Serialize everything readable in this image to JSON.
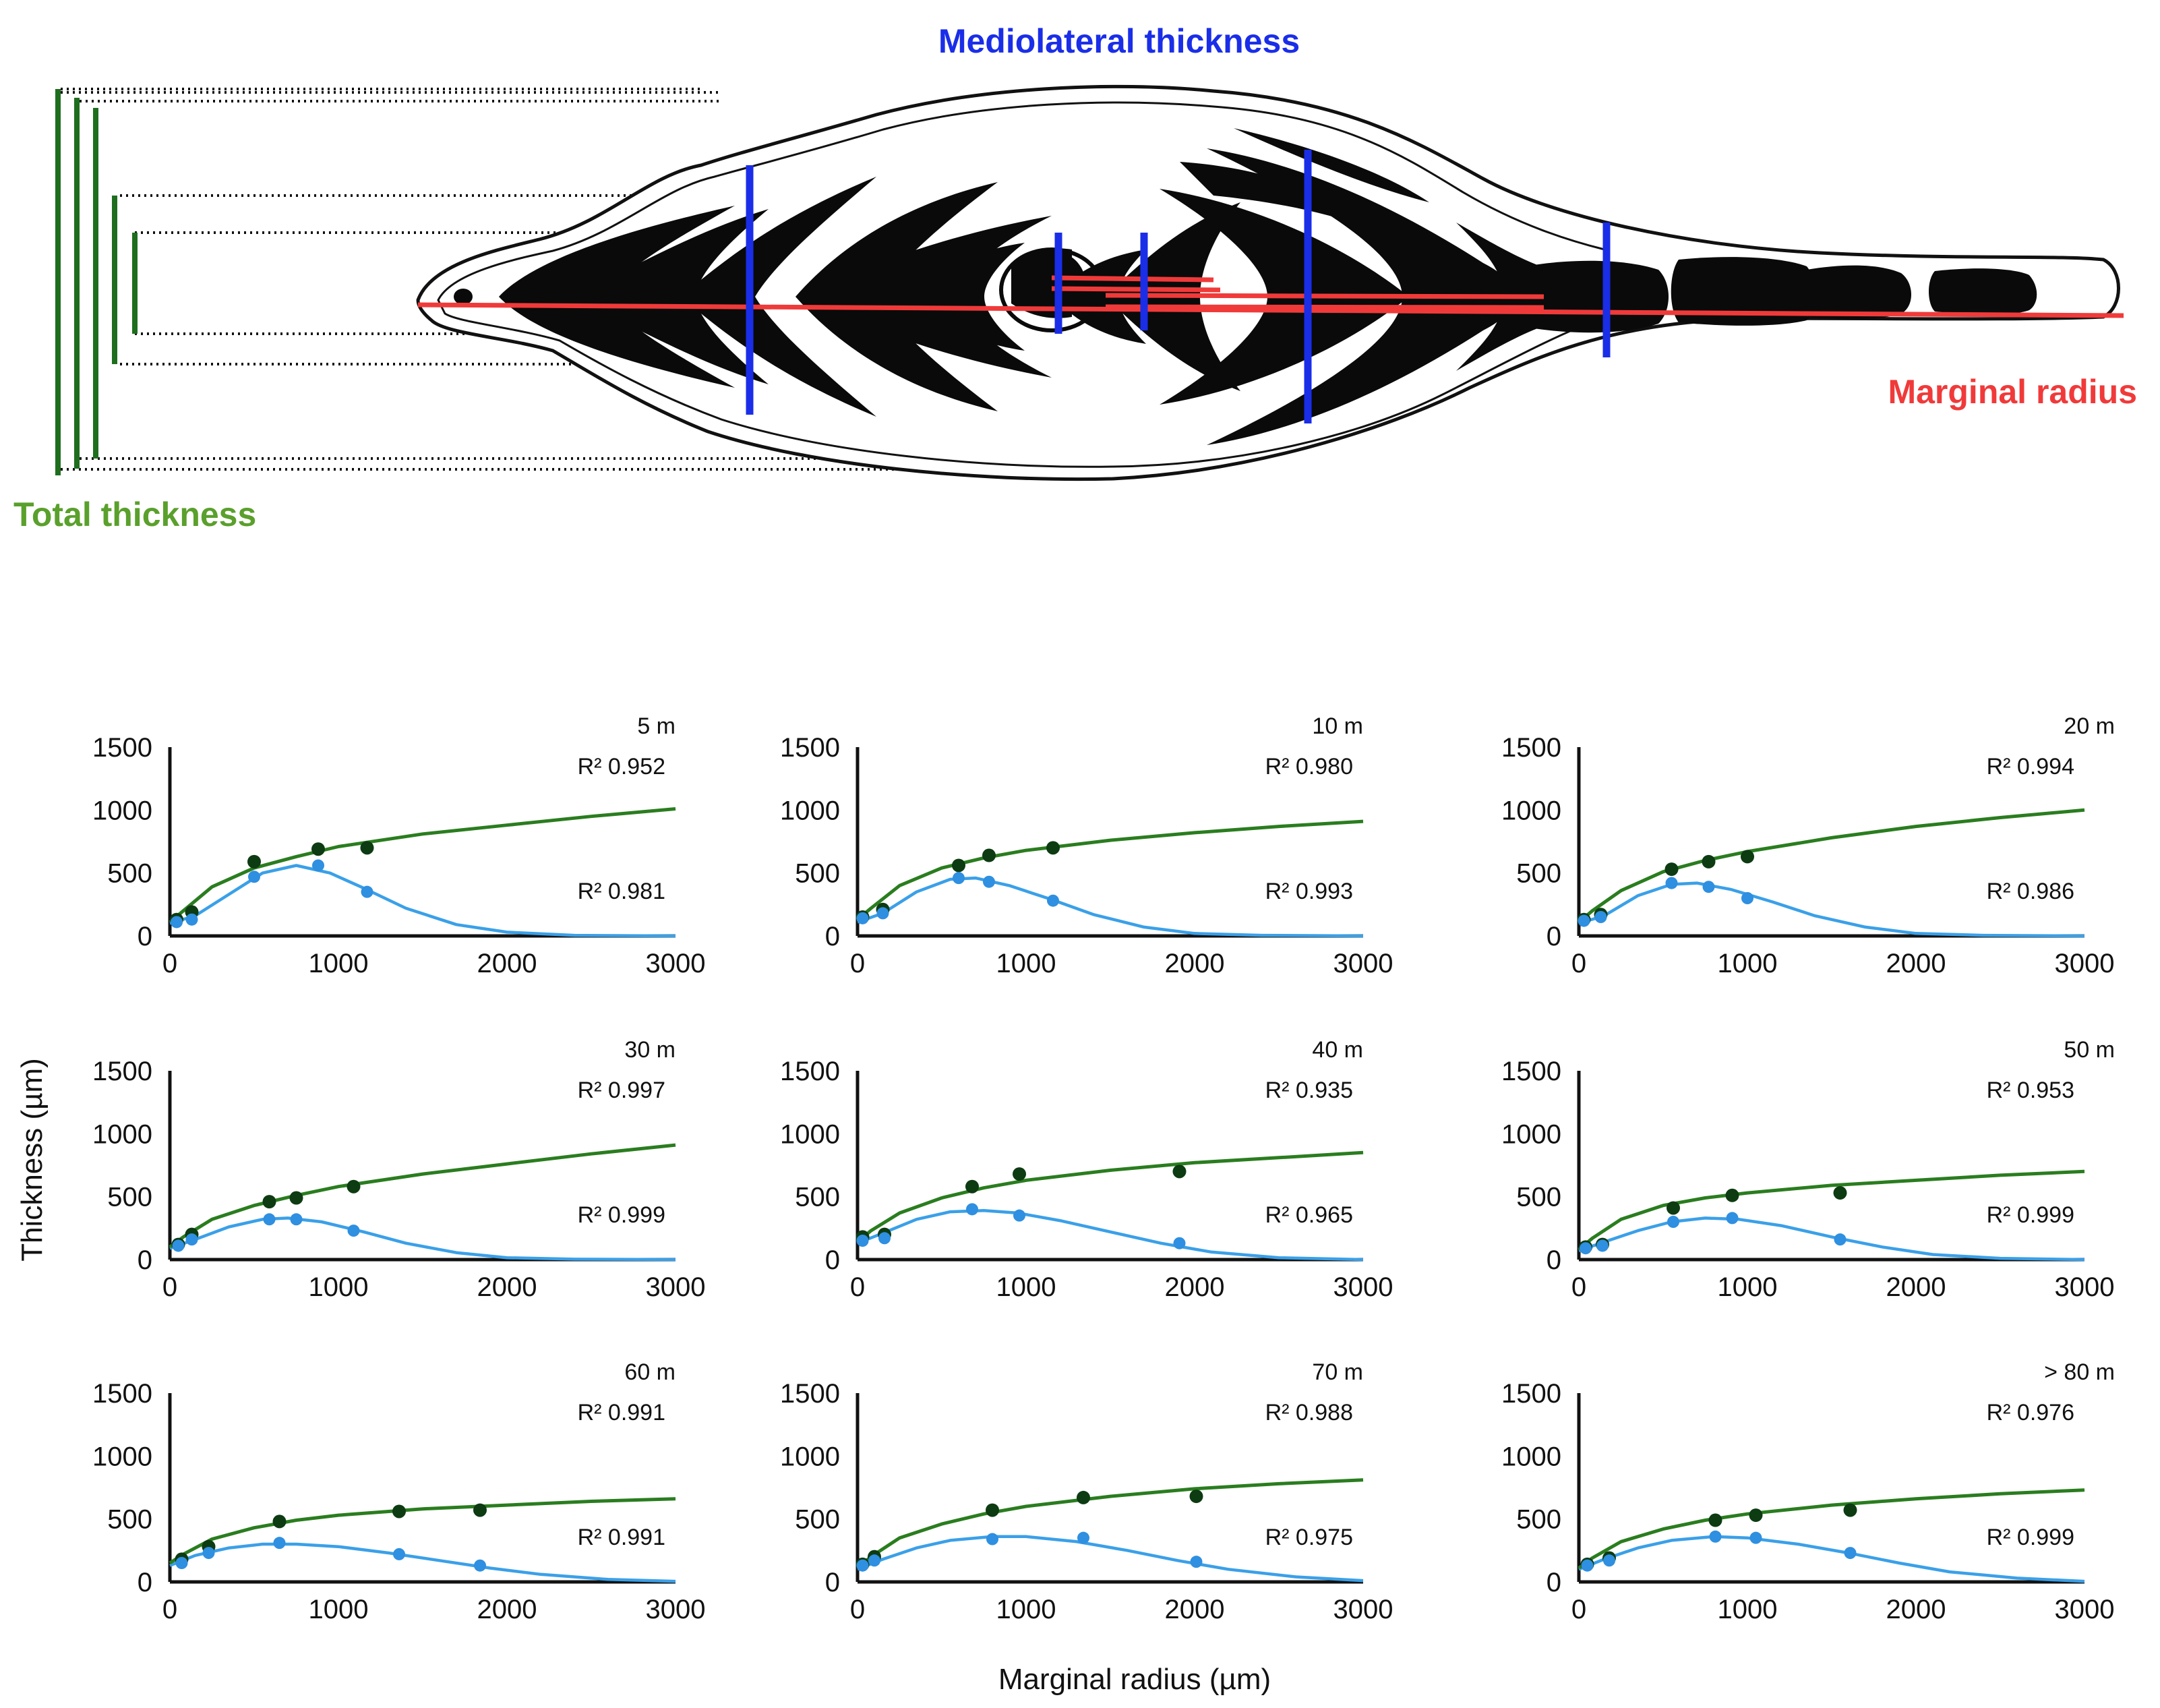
{
  "diagram": {
    "label_mediolateral": "Mediolateral thickness",
    "label_marginal": "Marginal radius",
    "label_total": "Total thickness",
    "colors": {
      "mediolateral": "#1a2ee8",
      "marginal": "#f03a3a",
      "total": "#1e6e1e",
      "total_label": "#5aa02c"
    }
  },
  "chart_data": {
    "type": "scatter",
    "layout": "3x3 small multiples",
    "ylabel": "Thickness (µm)",
    "xlabel": "Marginal radius (µm)",
    "xlim": [
      0,
      3000
    ],
    "ylim": [
      0,
      1500
    ],
    "xticks": [
      "0",
      "1000",
      "2000",
      "3000"
    ],
    "yticks": [
      "0",
      "500",
      "1000",
      "1500"
    ],
    "series_colors": {
      "total": "#2a7d1f",
      "mediolateral": "#3aa0e8",
      "total_points": "#0d3b12",
      "mediolateral_points": "#2f8fe0"
    },
    "panels": [
      {
        "title": "5 m",
        "r2_total": "R² 0.952",
        "r2_ml": "R² 0.981",
        "total": {
          "x": [
            40,
            130,
            500,
            880,
            1170
          ],
          "y": [
            130,
            190,
            590,
            690,
            700
          ]
        },
        "ml": {
          "x": [
            40,
            130,
            500,
            880,
            1170
          ],
          "y": [
            110,
            130,
            470,
            560,
            350
          ]
        },
        "total_fit": {
          "x": [
            0,
            80,
            250,
            500,
            750,
            1000,
            1500,
            2000,
            2500,
            3000
          ],
          "y": [
            110,
            200,
            390,
            540,
            630,
            710,
            810,
            880,
            950,
            1010
          ]
        },
        "ml_fit": {
          "x": [
            0,
            150,
            350,
            550,
            750,
            950,
            1150,
            1400,
            1700,
            2000,
            2400,
            3000
          ],
          "y": [
            100,
            160,
            330,
            500,
            560,
            500,
            380,
            220,
            90,
            30,
            5,
            0
          ]
        }
      },
      {
        "title": "10 m",
        "r2_total": "R² 0.980",
        "r2_ml": "R² 0.993",
        "total": {
          "x": [
            30,
            150,
            600,
            780,
            1160
          ],
          "y": [
            150,
            210,
            560,
            640,
            700
          ]
        },
        "ml": {
          "x": [
            30,
            150,
            600,
            780,
            1160
          ],
          "y": [
            140,
            180,
            460,
            430,
            280
          ]
        },
        "total_fit": {
          "x": [
            0,
            80,
            250,
            500,
            750,
            1000,
            1500,
            2000,
            2500,
            3000
          ],
          "y": [
            130,
            220,
            400,
            540,
            620,
            680,
            760,
            820,
            870,
            910
          ]
        },
        "ml_fit": {
          "x": [
            0,
            150,
            350,
            550,
            700,
            900,
            1150,
            1400,
            1700,
            2000,
            2400,
            3000
          ],
          "y": [
            110,
            180,
            350,
            450,
            460,
            400,
            290,
            170,
            70,
            20,
            5,
            0
          ]
        }
      },
      {
        "title": "20 m",
        "r2_total": "R² 0.994",
        "r2_ml": "R² 0.986",
        "total": {
          "x": [
            30,
            130,
            550,
            770,
            1000
          ],
          "y": [
            130,
            170,
            530,
            590,
            630
          ]
        },
        "ml": {
          "x": [
            30,
            130,
            550,
            770,
            1000
          ],
          "y": [
            120,
            150,
            420,
            390,
            300
          ]
        },
        "total_fit": {
          "x": [
            0,
            80,
            250,
            500,
            750,
            1000,
            1500,
            2000,
            2500,
            3000
          ],
          "y": [
            110,
            200,
            360,
            510,
            600,
            670,
            780,
            870,
            940,
            1000
          ]
        },
        "ml_fit": {
          "x": [
            0,
            150,
            350,
            550,
            700,
            900,
            1150,
            1400,
            1700,
            2000,
            2400,
            3000
          ],
          "y": [
            100,
            160,
            320,
            410,
            420,
            370,
            270,
            160,
            70,
            20,
            5,
            0
          ]
        }
      },
      {
        "title": "30 m",
        "r2_total": "R² 0.997",
        "r2_ml": "R² 0.999",
        "total": {
          "x": [
            50,
            130,
            590,
            750,
            1090
          ],
          "y": [
            120,
            200,
            460,
            490,
            580
          ]
        },
        "ml": {
          "x": [
            50,
            130,
            590,
            750,
            1090
          ],
          "y": [
            110,
            160,
            320,
            320,
            230
          ]
        },
        "total_fit": {
          "x": [
            0,
            80,
            250,
            500,
            750,
            1000,
            1500,
            2000,
            2500,
            3000
          ],
          "y": [
            100,
            180,
            320,
            430,
            510,
            580,
            680,
            760,
            840,
            910
          ]
        },
        "ml_fit": {
          "x": [
            0,
            150,
            350,
            550,
            700,
            900,
            1150,
            1400,
            1700,
            2000,
            2400,
            3000
          ],
          "y": [
            90,
            160,
            260,
            320,
            330,
            300,
            220,
            130,
            55,
            15,
            3,
            0
          ]
        }
      },
      {
        "title": "40 m",
        "r2_total": "R² 0.935",
        "r2_ml": "R² 0.965",
        "total": {
          "x": [
            30,
            160,
            680,
            960,
            1910
          ],
          "y": [
            180,
            200,
            580,
            680,
            700
          ]
        },
        "ml": {
          "x": [
            30,
            160,
            680,
            960,
            1910
          ],
          "y": [
            150,
            170,
            400,
            350,
            130
          ]
        },
        "total_fit": {
          "x": [
            0,
            80,
            250,
            500,
            750,
            1000,
            1500,
            2000,
            2500,
            3000
          ],
          "y": [
            140,
            230,
            370,
            490,
            570,
            630,
            710,
            770,
            810,
            850
          ]
        },
        "ml_fit": {
          "x": [
            0,
            150,
            350,
            550,
            750,
            950,
            1200,
            1500,
            1800,
            2100,
            2500,
            3000
          ],
          "y": [
            130,
            210,
            320,
            380,
            390,
            370,
            310,
            220,
            130,
            60,
            15,
            0
          ]
        }
      },
      {
        "title": "50 m",
        "r2_total": "R² 0.953",
        "r2_ml": "R² 0.999",
        "total": {
          "x": [
            40,
            140,
            560,
            910,
            1550
          ],
          "y": [
            100,
            120,
            410,
            510,
            530
          ]
        },
        "ml": {
          "x": [
            40,
            140,
            560,
            910,
            1550
          ],
          "y": [
            90,
            110,
            300,
            330,
            160
          ]
        },
        "total_fit": {
          "x": [
            0,
            80,
            250,
            500,
            750,
            1000,
            1500,
            2000,
            2500,
            3000
          ],
          "y": [
            80,
            170,
            320,
            430,
            490,
            530,
            590,
            630,
            670,
            700
          ]
        },
        "ml_fit": {
          "x": [
            0,
            150,
            350,
            550,
            750,
            950,
            1200,
            1500,
            1800,
            2100,
            2500,
            3000
          ],
          "y": [
            70,
            140,
            230,
            300,
            330,
            320,
            270,
            180,
            100,
            40,
            10,
            0
          ]
        }
      },
      {
        "title": "60 m",
        "r2_total": "R² 0.991",
        "r2_ml": "R² 0.991",
        "total": {
          "x": [
            70,
            230,
            650,
            1360,
            1840
          ],
          "y": [
            180,
            280,
            480,
            560,
            570
          ]
        },
        "ml": {
          "x": [
            70,
            230,
            650,
            1360,
            1840
          ],
          "y": [
            150,
            230,
            310,
            220,
            130
          ]
        },
        "total_fit": {
          "x": [
            0,
            80,
            250,
            500,
            750,
            1000,
            1500,
            2000,
            2500,
            3000
          ],
          "y": [
            150,
            220,
            340,
            430,
            490,
            530,
            580,
            610,
            640,
            660
          ]
        },
        "ml_fit": {
          "x": [
            0,
            150,
            350,
            550,
            750,
            1000,
            1300,
            1600,
            1900,
            2200,
            2600,
            3000
          ],
          "y": [
            130,
            210,
            270,
            300,
            300,
            280,
            230,
            170,
            110,
            60,
            20,
            5
          ]
        }
      },
      {
        "title": "70 m",
        "r2_total": "R² 0.988",
        "r2_ml": "R² 0.975",
        "total": {
          "x": [
            30,
            100,
            800,
            1340,
            2010
          ],
          "y": [
            140,
            200,
            570,
            670,
            680
          ]
        },
        "ml": {
          "x": [
            30,
            100,
            800,
            1340,
            2010
          ],
          "y": [
            130,
            170,
            340,
            350,
            160
          ]
        },
        "total_fit": {
          "x": [
            0,
            80,
            250,
            500,
            750,
            1000,
            1500,
            2000,
            2500,
            3000
          ],
          "y": [
            110,
            200,
            350,
            460,
            540,
            600,
            680,
            740,
            780,
            810
          ]
        },
        "ml_fit": {
          "x": [
            0,
            150,
            350,
            550,
            800,
            1000,
            1300,
            1600,
            1900,
            2200,
            2600,
            3000
          ],
          "y": [
            100,
            180,
            270,
            330,
            360,
            360,
            320,
            250,
            170,
            100,
            40,
            10
          ]
        }
      },
      {
        "title": "> 80 m",
        "r2_total": "R² 0.976",
        "r2_ml": "R² 0.999",
        "total": {
          "x": [
            50,
            180,
            810,
            1050,
            1610
          ],
          "y": [
            140,
            190,
            490,
            530,
            570
          ]
        },
        "ml": {
          "x": [
            50,
            180,
            810,
            1050,
            1610
          ],
          "y": [
            130,
            170,
            360,
            350,
            230
          ]
        },
        "total_fit": {
          "x": [
            0,
            80,
            250,
            500,
            750,
            1000,
            1500,
            2000,
            2500,
            3000
          ],
          "y": [
            110,
            190,
            320,
            420,
            490,
            540,
            610,
            660,
            700,
            730
          ]
        },
        "ml_fit": {
          "x": [
            0,
            150,
            350,
            550,
            800,
            1000,
            1300,
            1600,
            1900,
            2200,
            2600,
            3000
          ],
          "y": [
            100,
            180,
            270,
            330,
            360,
            350,
            300,
            230,
            150,
            80,
            30,
            5
          ]
        }
      }
    ]
  }
}
